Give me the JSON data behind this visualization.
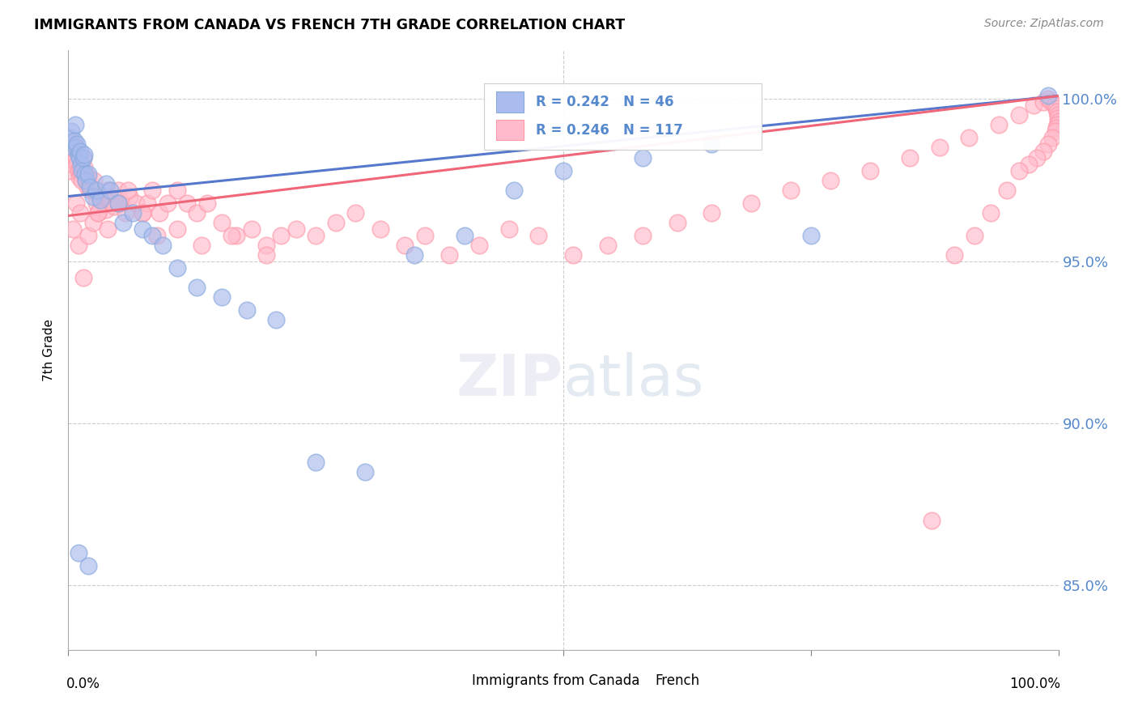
{
  "title": "IMMIGRANTS FROM CANADA VS FRENCH 7TH GRADE CORRELATION CHART",
  "source": "Source: ZipAtlas.com",
  "ylabel": "7th Grade",
  "legend_label1": "Immigrants from Canada",
  "legend_label2": "French",
  "r1": 0.242,
  "n1": 46,
  "r2": 0.246,
  "n2": 117,
  "color_blue": "#88AADD",
  "color_pink": "#FF99AA",
  "color_blue_fill": "#AABBEE",
  "color_pink_fill": "#FFBBCC",
  "color_blue_line": "#5577CC",
  "color_pink_line": "#EE6677",
  "ytick_labels": [
    "85.0%",
    "90.0%",
    "95.0%",
    "100.0%"
  ],
  "ytick_values": [
    0.85,
    0.9,
    0.95,
    1.0
  ],
  "xlim": [
    0.0,
    1.0
  ],
  "ylim": [
    0.83,
    1.015
  ],
  "blue_trend_start": 0.97,
  "blue_trend_end": 1.001,
  "pink_trend_start": 0.964,
  "pink_trend_end": 1.001,
  "blue_x": [
    0.001,
    0.003,
    0.005,
    0.006,
    0.007,
    0.008,
    0.009,
    0.01,
    0.011,
    0.012,
    0.013,
    0.014,
    0.015,
    0.016,
    0.017,
    0.018,
    0.02,
    0.022,
    0.025,
    0.028,
    0.032,
    0.038,
    0.042,
    0.05,
    0.055,
    0.065,
    0.075,
    0.085,
    0.095,
    0.11,
    0.13,
    0.155,
    0.18,
    0.21,
    0.25,
    0.3,
    0.35,
    0.4,
    0.45,
    0.5,
    0.58,
    0.65,
    0.75,
    0.01,
    0.02,
    0.99
  ],
  "blue_y": [
    0.988,
    0.99,
    0.985,
    0.987,
    0.992,
    0.985,
    0.986,
    0.983,
    0.982,
    0.984,
    0.98,
    0.978,
    0.982,
    0.983,
    0.977,
    0.975,
    0.977,
    0.973,
    0.97,
    0.972,
    0.969,
    0.974,
    0.972,
    0.968,
    0.962,
    0.965,
    0.96,
    0.958,
    0.955,
    0.948,
    0.942,
    0.939,
    0.935,
    0.932,
    0.888,
    0.885,
    0.952,
    0.958,
    0.972,
    0.978,
    0.982,
    0.986,
    0.958,
    0.86,
    0.856,
    1.001
  ],
  "pink_x": [
    0.001,
    0.002,
    0.003,
    0.004,
    0.005,
    0.006,
    0.007,
    0.008,
    0.009,
    0.01,
    0.011,
    0.012,
    0.013,
    0.014,
    0.015,
    0.016,
    0.017,
    0.018,
    0.019,
    0.02,
    0.021,
    0.022,
    0.024,
    0.026,
    0.028,
    0.03,
    0.032,
    0.035,
    0.038,
    0.04,
    0.043,
    0.046,
    0.05,
    0.054,
    0.058,
    0.062,
    0.068,
    0.075,
    0.08,
    0.085,
    0.092,
    0.1,
    0.11,
    0.12,
    0.13,
    0.14,
    0.155,
    0.17,
    0.185,
    0.2,
    0.215,
    0.23,
    0.25,
    0.27,
    0.29,
    0.315,
    0.34,
    0.36,
    0.385,
    0.415,
    0.445,
    0.475,
    0.51,
    0.545,
    0.58,
    0.615,
    0.65,
    0.69,
    0.73,
    0.77,
    0.81,
    0.85,
    0.88,
    0.91,
    0.94,
    0.96,
    0.975,
    0.985,
    0.99,
    0.993,
    0.996,
    0.998,
    0.999,
    0.9995,
    0.9998,
    1.0,
    0.999,
    0.998,
    0.997,
    0.994,
    0.99,
    0.985,
    0.978,
    0.97,
    0.96,
    0.948,
    0.932,
    0.915,
    0.895,
    0.872,
    0.005,
    0.01,
    0.015,
    0.008,
    0.012,
    0.02,
    0.025,
    0.03,
    0.04,
    0.05,
    0.06,
    0.075,
    0.09,
    0.11,
    0.135,
    0.165,
    0.2
  ],
  "pink_y": [
    0.978,
    0.982,
    0.985,
    0.983,
    0.98,
    0.986,
    0.984,
    0.982,
    0.98,
    0.978,
    0.976,
    0.979,
    0.977,
    0.975,
    0.982,
    0.979,
    0.977,
    0.975,
    0.973,
    0.976,
    0.974,
    0.972,
    0.972,
    0.975,
    0.968,
    0.965,
    0.97,
    0.968,
    0.966,
    0.972,
    0.969,
    0.967,
    0.972,
    0.968,
    0.965,
    0.97,
    0.968,
    0.965,
    0.968,
    0.972,
    0.965,
    0.968,
    0.972,
    0.968,
    0.965,
    0.968,
    0.962,
    0.958,
    0.96,
    0.955,
    0.958,
    0.96,
    0.958,
    0.962,
    0.965,
    0.96,
    0.955,
    0.958,
    0.952,
    0.955,
    0.96,
    0.958,
    0.952,
    0.955,
    0.958,
    0.962,
    0.965,
    0.968,
    0.972,
    0.975,
    0.978,
    0.982,
    0.985,
    0.988,
    0.992,
    0.995,
    0.998,
    0.999,
    1.0,
    0.999,
    0.998,
    0.997,
    0.996,
    0.995,
    0.994,
    0.993,
    0.992,
    0.991,
    0.99,
    0.988,
    0.986,
    0.984,
    0.982,
    0.98,
    0.978,
    0.972,
    0.965,
    0.958,
    0.952,
    0.87,
    0.96,
    0.955,
    0.945,
    0.968,
    0.965,
    0.958,
    0.962,
    0.965,
    0.96,
    0.968,
    0.972,
    0.965,
    0.958,
    0.96,
    0.955,
    0.958,
    0.952
  ]
}
